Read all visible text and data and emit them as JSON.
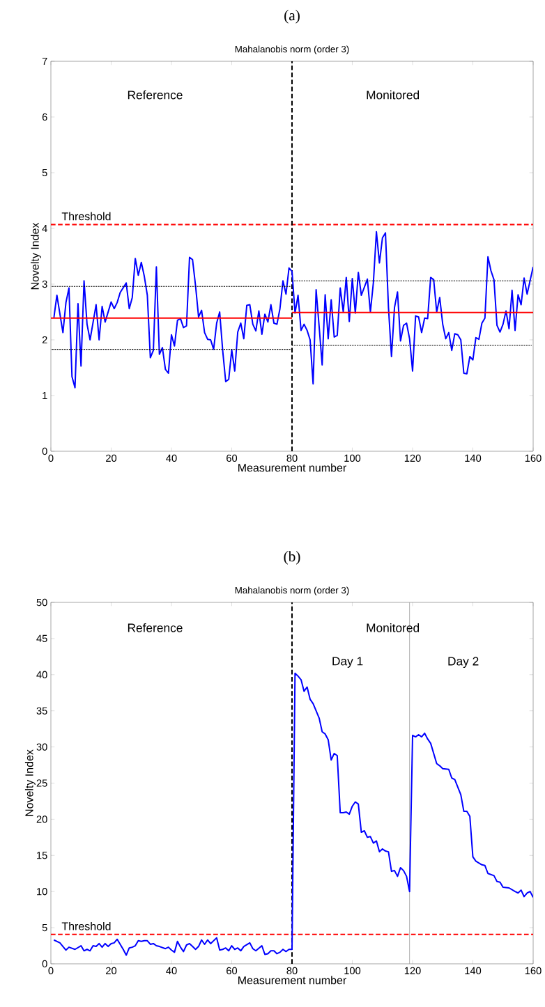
{
  "chart_data": [
    {
      "type": "line",
      "title": "Mahalanobis norm (order 3)",
      "xlabel": "Measurement number",
      "ylabel": "Novelty Index",
      "annotations": [
        "(a)",
        "Reference",
        "Monitored"
      ],
      "xlim": [
        0,
        160
      ],
      "ylim": [
        0,
        7
      ],
      "xticks": [
        0,
        20,
        40,
        60,
        80,
        100,
        120,
        140,
        160
      ],
      "yticks": [
        0,
        1,
        2,
        3,
        4,
        5,
        6,
        7
      ],
      "series": [
        {
          "color": "#0000ff",
          "line_style": "solid",
          "x": [
            1,
            2,
            4,
            5,
            6,
            7,
            8,
            9,
            10,
            11,
            12,
            13,
            15,
            16,
            17,
            18,
            20,
            21,
            22,
            23,
            25,
            26,
            27,
            28,
            29,
            30,
            31,
            32,
            33,
            34,
            35,
            36,
            37,
            38,
            39,
            40,
            41,
            42,
            43,
            44,
            45,
            46,
            47,
            48,
            49,
            50,
            51,
            52,
            53,
            54,
            55,
            56,
            57,
            58,
            59,
            60,
            61,
            62,
            63,
            64,
            65,
            66,
            67,
            68,
            69,
            70,
            71,
            72,
            73,
            74,
            75,
            76,
            77,
            78,
            79,
            80,
            81,
            82,
            83,
            84,
            85,
            86,
            87,
            88,
            89,
            90,
            91,
            92,
            93,
            94,
            95,
            96,
            97,
            98,
            99,
            100,
            101,
            102,
            103,
            105,
            106,
            107,
            108,
            109,
            110,
            111,
            112,
            113,
            114,
            115,
            116,
            117,
            118,
            119,
            120,
            121,
            122,
            123,
            124,
            125,
            126,
            127,
            128,
            129,
            130,
            131,
            132,
            133,
            134,
            135,
            136,
            137,
            138,
            139,
            140,
            141,
            142,
            143,
            144,
            145,
            146,
            147,
            148,
            149,
            150,
            151,
            152,
            153,
            154,
            155,
            156,
            157,
            158,
            160
          ],
          "values": [
            2.4,
            2.8,
            2.13,
            2.67,
            2.93,
            1.34,
            1.14,
            2.65,
            1.53,
            3.06,
            2.28,
            2.0,
            2.63,
            2.0,
            2.6,
            2.32,
            2.68,
            2.56,
            2.67,
            2.85,
            3.02,
            2.56,
            2.76,
            3.46,
            3.16,
            3.39,
            3.14,
            2.8,
            1.68,
            1.81,
            3.31,
            1.74,
            1.86,
            1.47,
            1.4,
            2.09,
            1.89,
            2.35,
            2.38,
            2.22,
            2.25,
            3.48,
            3.44,
            2.97,
            2.41,
            2.53,
            2.13,
            2.01,
            2.0,
            1.83,
            2.3,
            2.5,
            1.81,
            1.25,
            1.29,
            1.82,
            1.44,
            2.14,
            2.3,
            2.02,
            2.62,
            2.63,
            2.28,
            2.16,
            2.52,
            2.1,
            2.46,
            2.32,
            2.63,
            2.3,
            2.28,
            2.56,
            3.06,
            2.82,
            3.29,
            3.23,
            2.48,
            2.8,
            2.17,
            2.28,
            2.17,
            2.0,
            1.21,
            2.9,
            2.24,
            1.55,
            2.81,
            2.02,
            2.72,
            2.05,
            2.08,
            2.93,
            2.5,
            3.12,
            2.33,
            3.1,
            2.48,
            3.21,
            2.8,
            3.09,
            2.5,
            3.03,
            3.94,
            3.38,
            3.83,
            3.92,
            2.58,
            1.7,
            2.58,
            2.86,
            1.98,
            2.26,
            2.3,
            2.02,
            1.44,
            2.43,
            2.41,
            2.13,
            2.39,
            2.38,
            3.12,
            3.08,
            2.5,
            2.76,
            2.28,
            2.02,
            2.13,
            1.81,
            2.11,
            2.09,
            2.0,
            1.4,
            1.39,
            1.7,
            1.64,
            2.04,
            2.01,
            2.3,
            2.39,
            3.49,
            3.24,
            3.08,
            2.26,
            2.14,
            2.28,
            2.52,
            2.2,
            2.89,
            2.17,
            2.81,
            2.63,
            3.11,
            2.82,
            3.31
          ]
        },
        {
          "color": "#ff0000",
          "line_style": "solid",
          "x": [
            0,
            80
          ],
          "values": [
            2.39,
            2.39
          ]
        },
        {
          "color": "#ff0000",
          "line_style": "solid",
          "x": [
            80,
            160
          ],
          "values": [
            2.49,
            2.49
          ]
        },
        {
          "color": "#000000",
          "line_style": "dotted",
          "x": [
            0,
            80
          ],
          "values": [
            2.96,
            2.96
          ]
        },
        {
          "color": "#000000",
          "line_style": "dotted",
          "x": [
            0,
            80
          ],
          "values": [
            1.83,
            1.83
          ]
        },
        {
          "color": "#000000",
          "line_style": "dotted",
          "x": [
            80,
            159.5
          ],
          "values": [
            3.06,
            3.06
          ]
        },
        {
          "color": "#000000",
          "line_style": "dotted",
          "x": [
            80,
            159.5
          ],
          "values": [
            1.9,
            1.9
          ]
        }
      ],
      "ref_lines": [
        {
          "axis": "y",
          "value": 4.07,
          "label": "Threshold",
          "color": "#ff0000",
          "line_style": "dashed"
        },
        {
          "axis": "x",
          "value": 80,
          "color": "#000000",
          "line_style": "dashed"
        }
      ]
    },
    {
      "type": "line",
      "title": "Mahalanobis norm (order 3)",
      "xlabel": "Measurement number",
      "ylabel": "Novelty Index",
      "annotations": [
        "(b)",
        "Reference",
        "Monitored",
        "Day 1",
        "Day 2"
      ],
      "xlim": [
        0,
        160
      ],
      "ylim": [
        0,
        50
      ],
      "xticks": [
        0,
        20,
        40,
        60,
        80,
        100,
        120,
        140,
        160
      ],
      "yticks": [
        0,
        5,
        10,
        15,
        20,
        25,
        30,
        35,
        40,
        45,
        50
      ],
      "series": [
        {
          "color": "#0000ff",
          "line_style": "solid",
          "x": [
            1,
            3,
            5,
            6,
            8,
            10,
            11,
            12,
            13,
            14,
            15,
            16,
            17,
            18,
            19,
            20,
            21,
            22,
            23,
            24,
            25,
            26,
            27,
            28,
            29,
            30,
            31,
            32,
            33,
            34,
            35,
            36,
            38,
            39,
            40,
            41,
            42,
            43,
            44,
            45,
            46,
            47,
            48,
            49,
            50,
            51,
            52,
            53,
            55,
            56,
            57,
            58,
            59,
            60,
            61,
            62,
            63,
            64,
            66,
            67,
            68,
            70,
            71,
            72,
            73,
            74,
            75,
            76,
            77,
            78,
            79,
            80,
            81,
            82,
            83,
            84,
            85,
            86,
            87,
            89,
            90,
            91,
            92,
            93,
            94,
            95,
            96,
            97,
            98,
            99,
            100,
            101,
            102,
            103,
            104,
            105,
            106,
            107,
            108,
            109,
            110,
            111,
            112,
            113,
            114,
            115,
            116,
            117,
            118,
            119,
            120,
            121,
            122,
            123,
            124,
            125,
            126,
            128,
            129,
            130,
            132,
            133,
            134,
            136,
            137,
            138,
            139,
            140,
            141,
            143,
            144,
            145,
            147,
            148,
            149,
            150,
            152,
            154,
            155,
            156,
            157,
            158,
            159,
            160
          ],
          "values": [
            3.3,
            2.9,
            1.9,
            2.3,
            2.0,
            2.5,
            1.8,
            2.0,
            1.8,
            2.5,
            2.4,
            2.8,
            2.3,
            2.8,
            2.4,
            2.8,
            2.9,
            3.4,
            2.7,
            2.0,
            1.2,
            2.2,
            2.3,
            2.5,
            3.2,
            3.1,
            3.2,
            3.2,
            2.7,
            2.8,
            2.5,
            2.4,
            2.1,
            2.3,
            1.9,
            1.6,
            3.1,
            2.3,
            1.7,
            2.6,
            2.8,
            2.4,
            2.0,
            2.4,
            3.3,
            2.7,
            3.3,
            2.8,
            3.6,
            1.9,
            2.0,
            2.2,
            1.8,
            2.5,
            2.0,
            2.2,
            1.8,
            2.4,
            2.9,
            2.1,
            1.8,
            2.5,
            1.3,
            1.4,
            1.8,
            1.8,
            1.4,
            1.6,
            2.0,
            1.7,
            2.0,
            2.0,
            40.2,
            39.8,
            39.3,
            37.7,
            38.3,
            36.6,
            36.0,
            34.0,
            32.1,
            31.8,
            31.0,
            28.2,
            29.1,
            28.8,
            20.9,
            20.9,
            21.0,
            20.7,
            21.8,
            22.4,
            22.1,
            18.2,
            18.4,
            17.5,
            17.6,
            16.7,
            17.0,
            15.5,
            15.9,
            15.6,
            15.5,
            12.8,
            12.9,
            12.1,
            13.3,
            12.9,
            12.1,
            10.0,
            31.6,
            31.4,
            31.7,
            31.4,
            31.9,
            31.1,
            30.5,
            27.7,
            27.4,
            27.0,
            26.9,
            25.7,
            25.5,
            23.4,
            21.1,
            21.1,
            20.4,
            14.8,
            14.2,
            13.7,
            13.6,
            12.5,
            12.2,
            11.4,
            11.3,
            10.6,
            10.5,
            10.0,
            9.8,
            10.2,
            9.3,
            9.8,
            10.0,
            9.2
          ]
        }
      ],
      "ref_lines": [
        {
          "axis": "y",
          "value": 4.07,
          "label": "Threshold",
          "color": "#ff0000",
          "line_style": "dashed"
        },
        {
          "axis": "x",
          "value": 80,
          "color": "#000000",
          "line_style": "dashed"
        },
        {
          "axis": "x",
          "value": 119,
          "color": "#999999",
          "line_style": "solid"
        }
      ]
    }
  ]
}
